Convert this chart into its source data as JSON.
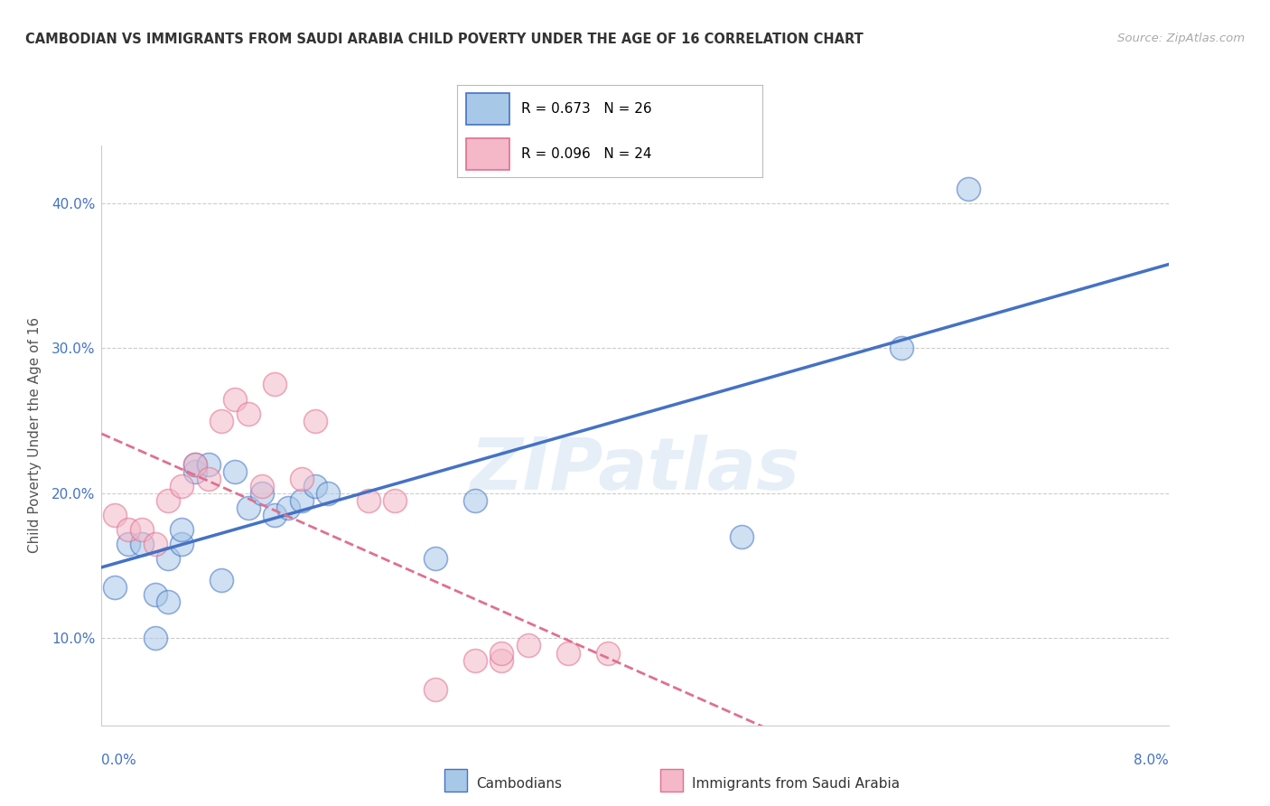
{
  "title": "CAMBODIAN VS IMMIGRANTS FROM SAUDI ARABIA CHILD POVERTY UNDER THE AGE OF 16 CORRELATION CHART",
  "source": "Source: ZipAtlas.com",
  "ylabel": "Child Poverty Under the Age of 16",
  "ytick_labels": [
    "10.0%",
    "20.0%",
    "30.0%",
    "40.0%"
  ],
  "ytick_values": [
    0.1,
    0.2,
    0.3,
    0.4
  ],
  "xlim": [
    0.0,
    0.08
  ],
  "ylim": [
    0.04,
    0.44
  ],
  "legend_r1": "R = 0.673",
  "legend_n1": "N = 26",
  "legend_r2": "R = 0.096",
  "legend_n2": "N = 24",
  "cambodian_color": "#a8c8e8",
  "saudi_color": "#f4b8c8",
  "cambodian_line_color": "#4472c4",
  "saudi_line_color": "#e07090",
  "watermark": "ZIPatlas",
  "cambodian_x": [
    0.001,
    0.002,
    0.003,
    0.004,
    0.004,
    0.005,
    0.005,
    0.006,
    0.006,
    0.007,
    0.007,
    0.008,
    0.009,
    0.01,
    0.011,
    0.012,
    0.013,
    0.014,
    0.015,
    0.016,
    0.017,
    0.025,
    0.028,
    0.048,
    0.06,
    0.065
  ],
  "cambodian_y": [
    0.135,
    0.165,
    0.165,
    0.1,
    0.13,
    0.125,
    0.155,
    0.165,
    0.175,
    0.215,
    0.22,
    0.22,
    0.14,
    0.215,
    0.19,
    0.2,
    0.185,
    0.19,
    0.195,
    0.205,
    0.2,
    0.155,
    0.195,
    0.17,
    0.3,
    0.41
  ],
  "saudi_x": [
    0.001,
    0.002,
    0.003,
    0.004,
    0.005,
    0.006,
    0.007,
    0.008,
    0.009,
    0.01,
    0.011,
    0.012,
    0.013,
    0.015,
    0.016,
    0.02,
    0.022,
    0.025,
    0.028,
    0.03,
    0.03,
    0.032,
    0.035,
    0.038
  ],
  "saudi_y": [
    0.185,
    0.175,
    0.175,
    0.165,
    0.195,
    0.205,
    0.22,
    0.21,
    0.25,
    0.265,
    0.255,
    0.205,
    0.275,
    0.21,
    0.25,
    0.195,
    0.195,
    0.065,
    0.085,
    0.085,
    0.09,
    0.095,
    0.09,
    0.09
  ]
}
